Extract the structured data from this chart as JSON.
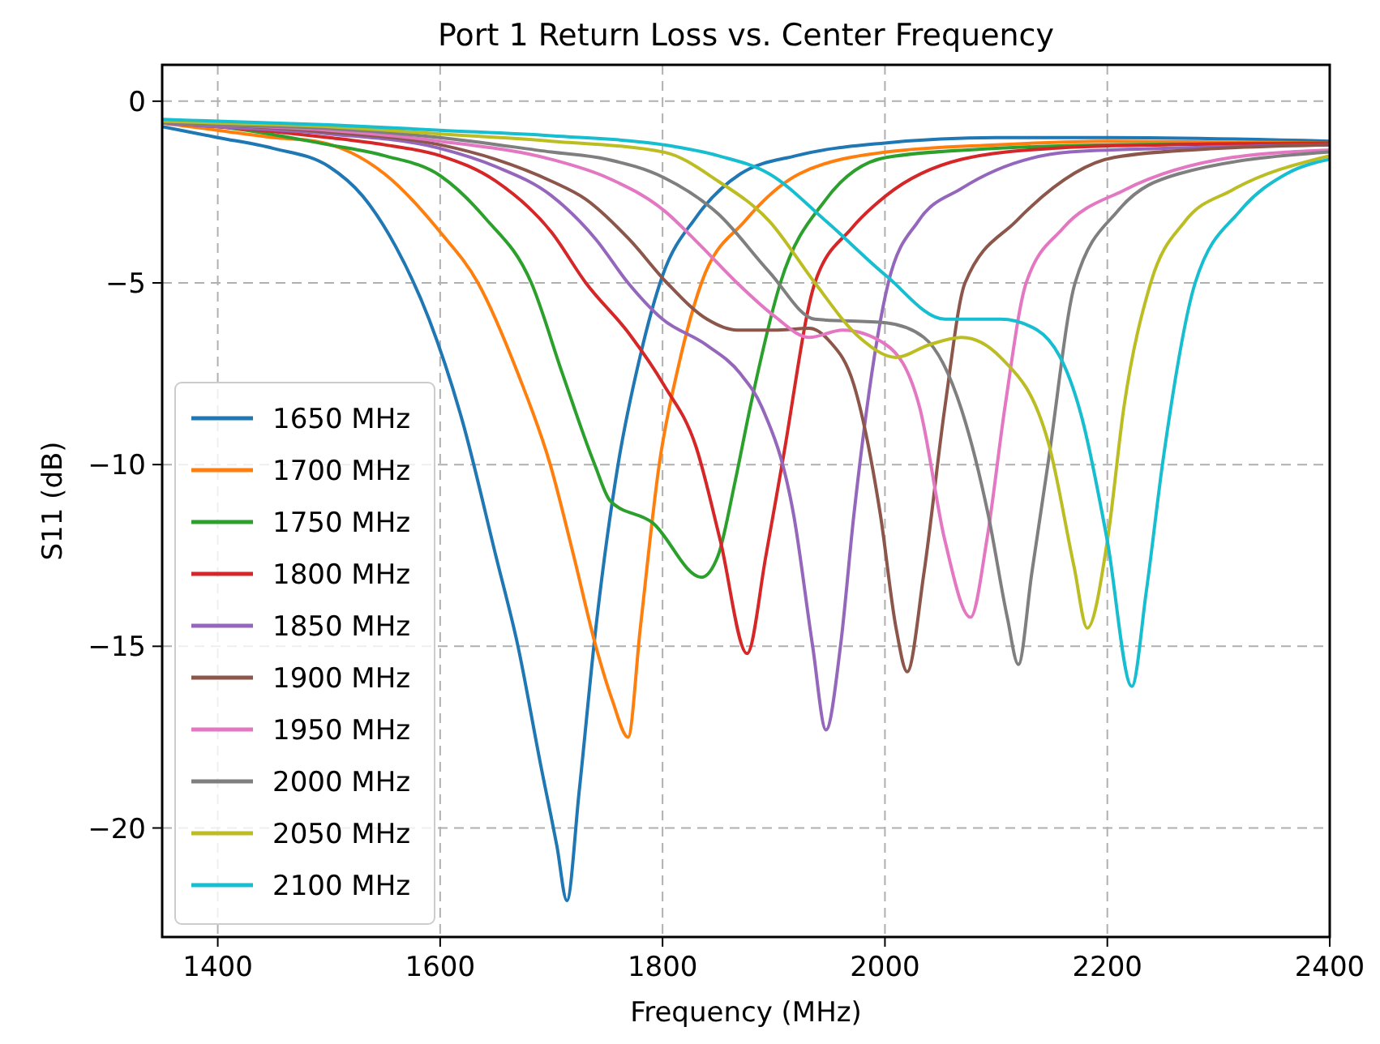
{
  "chart_data": {
    "type": "line",
    "title": "Port 1 Return Loss vs. Center Frequency",
    "xlabel": "Frequency (MHz)",
    "ylabel": "S11 (dB)",
    "xlim": [
      1350,
      2400
    ],
    "ylim": [
      -23,
      1
    ],
    "xticks": [
      1400,
      1600,
      1800,
      2000,
      2200,
      2400
    ],
    "yticks": [
      {
        "value": 0,
        "label": "0"
      },
      {
        "value": -5,
        "label": "−5"
      },
      {
        "value": -10,
        "label": "−10"
      },
      {
        "value": -15,
        "label": "−15"
      },
      {
        "value": -20,
        "label": "−20"
      }
    ],
    "grid": true,
    "legend": "bottom left",
    "line_style": "solid",
    "marker": "none",
    "series": [
      {
        "name": "1650 MHz",
        "color": "#1f77b4",
        "x": [
          1350,
          1400,
          1450,
          1500,
          1530,
          1560,
          1590,
          1620,
          1650,
          1670,
          1690,
          1705,
          1714,
          1725,
          1740,
          1760,
          1780,
          1800,
          1830,
          1870,
          1920,
          2000,
          2100,
          2200,
          2400
        ],
        "values": [
          -0.7,
          -1.0,
          -1.3,
          -1.8,
          -2.6,
          -4.0,
          -6.0,
          -8.8,
          -12.5,
          -15,
          -18.2,
          -20.5,
          -22,
          -19,
          -14.5,
          -10,
          -7,
          -4.8,
          -3.2,
          -2.0,
          -1.5,
          -1.15,
          -1.0,
          -1.0,
          -1.1
        ]
      },
      {
        "name": "1700 MHz",
        "color": "#ff7f0e",
        "x": [
          1350,
          1400,
          1450,
          1488,
          1550,
          1600,
          1634,
          1670,
          1699,
          1720,
          1740,
          1755,
          1769,
          1780,
          1797,
          1815,
          1835,
          1874,
          1923,
          2001,
          2100,
          2200,
          2400
        ],
        "values": [
          -0.6,
          -0.8,
          -1.0,
          -1.1,
          -2.0,
          -3.6,
          -5.0,
          -7.5,
          -10,
          -12.5,
          -15,
          -16.5,
          -17.5,
          -14.5,
          -10,
          -7.2,
          -5.0,
          -3.3,
          -2.0,
          -1.4,
          -1.2,
          -1.1,
          -1.15
        ]
      },
      {
        "name": "1750 MHz",
        "color": "#2ca02c",
        "x": [
          1350,
          1400,
          1500,
          1550,
          1600,
          1640,
          1682,
          1710,
          1739,
          1753,
          1791,
          1835,
          1850,
          1865,
          1879,
          1906,
          1947,
          2001,
          2100,
          2200,
          2400
        ],
        "values": [
          -0.6,
          -0.7,
          -1.2,
          -1.5,
          -2.05,
          -3.2,
          -5.0,
          -7.5,
          -10,
          -11,
          -11.6,
          -13.1,
          -12.5,
          -10.5,
          -8.4,
          -5.0,
          -2.7,
          -1.55,
          -1.3,
          -1.2,
          -1.15
        ]
      },
      {
        "name": "1800 MHz",
        "color": "#d62728",
        "x": [
          1350,
          1400,
          1500,
          1550,
          1600,
          1650,
          1700,
          1731,
          1770,
          1801,
          1830,
          1852,
          1876,
          1893,
          1908,
          1937,
          1970,
          2001,
          2069,
          2150,
          2250,
          2400
        ],
        "values": [
          -0.6,
          -0.7,
          -1.0,
          -1.2,
          -1.5,
          -2.2,
          -3.6,
          -5.0,
          -6.4,
          -7.8,
          -9.5,
          -12.1,
          -15.2,
          -12.5,
          -9.9,
          -5.0,
          -3.5,
          -2.6,
          -1.6,
          -1.3,
          -1.2,
          -1.15
        ]
      },
      {
        "name": "1850 MHz",
        "color": "#9467bd",
        "x": [
          1350,
          1400,
          1500,
          1600,
          1650,
          1700,
          1740,
          1769,
          1800,
          1839,
          1870,
          1889,
          1918,
          1935,
          1947,
          1960,
          1972,
          2003,
          2030,
          2069,
          2166,
          2250,
          2400
        ],
        "values": [
          -0.6,
          -0.7,
          -0.9,
          -1.3,
          -1.8,
          -2.6,
          -3.8,
          -5.0,
          -6.0,
          -6.7,
          -7.5,
          -8.4,
          -11.4,
          -15,
          -17.3,
          -15,
          -11.4,
          -5.0,
          -3.3,
          -2.4,
          -1.4,
          -1.3,
          -1.2
        ]
      },
      {
        "name": "1900 MHz",
        "color": "#8c564b",
        "x": [
          1350,
          1400,
          1500,
          1600,
          1650,
          1700,
          1731,
          1770,
          1804,
          1840,
          1867,
          1900,
          1932,
          1950,
          1972,
          1996,
          2010,
          2020,
          2035,
          2054,
          2072,
          2118,
          2206,
          2300,
          2400
        ],
        "values": [
          -0.6,
          -0.65,
          -0.85,
          -1.2,
          -1.6,
          -2.2,
          -2.7,
          -3.8,
          -5.0,
          -6.0,
          -6.3,
          -6.3,
          -6.25,
          -6.6,
          -7.8,
          -11.4,
          -14.5,
          -15.7,
          -13,
          -8.4,
          -5.0,
          -3.3,
          -1.55,
          -1.3,
          -1.2
        ]
      },
      {
        "name": "1950 MHz",
        "color": "#e377c2",
        "x": [
          1350,
          1400,
          1500,
          1600,
          1700,
          1750,
          1801,
          1835,
          1867,
          1900,
          1932,
          1962,
          2001,
          2031,
          2054,
          2077,
          2092,
          2108,
          2127,
          2160,
          2215,
          2312,
          2400
        ],
        "values": [
          -0.6,
          -0.65,
          -0.8,
          -1.1,
          -1.6,
          -2.1,
          -3.0,
          -4.0,
          -5.0,
          -5.9,
          -6.5,
          -6.3,
          -6.7,
          -8.4,
          -12.1,
          -14.2,
          -12,
          -8.4,
          -5.0,
          -3.5,
          -2.45,
          -1.55,
          -1.35
        ]
      },
      {
        "name": "2000 MHz",
        "color": "#7f7f7f",
        "x": [
          1350,
          1400,
          1500,
          1600,
          1700,
          1750,
          1801,
          1850,
          1896,
          1937,
          2001,
          2035,
          2069,
          2093,
          2110,
          2120,
          2132,
          2147,
          2171,
          2210,
          2264,
          2400
        ],
        "values": [
          -0.6,
          -0.65,
          -0.75,
          -1.0,
          -1.4,
          -1.6,
          -2.1,
          -3.1,
          -4.7,
          -6.0,
          -6.1,
          -6.5,
          -8.5,
          -11.4,
          -14.2,
          -15.5,
          -13,
          -9.9,
          -5.0,
          -3.0,
          -2.0,
          -1.4
        ]
      },
      {
        "name": "2050 MHz",
        "color": "#bcbd22",
        "x": [
          1350,
          1400,
          1500,
          1600,
          1700,
          1801,
          1850,
          1896,
          1937,
          1977,
          2010,
          2040,
          2069,
          2104,
          2147,
          2170,
          2182,
          2200,
          2215,
          2239,
          2270,
          2312,
          2400
        ],
        "values": [
          -0.55,
          -0.6,
          -0.7,
          -0.9,
          -1.1,
          -1.4,
          -2.2,
          -3.3,
          -5.0,
          -6.5,
          -7.05,
          -6.7,
          -6.5,
          -7.05,
          -9.4,
          -12.8,
          -14.5,
          -12.1,
          -8.4,
          -5.0,
          -3.3,
          -2.45,
          -1.5
        ]
      },
      {
        "name": "2100 MHz",
        "color": "#17becf",
        "x": [
          1350,
          1400,
          1500,
          1600,
          1700,
          1801,
          1850,
          1896,
          1947,
          2001,
          2054,
          2104,
          2137,
          2177,
          2200,
          2222,
          2235,
          2250,
          2279,
          2320,
          2361,
          2400
        ],
        "values": [
          -0.5,
          -0.55,
          -0.65,
          -0.8,
          -0.95,
          -1.2,
          -1.5,
          -2.0,
          -3.3,
          -4.8,
          -6.0,
          -6.0,
          -6.3,
          -8.7,
          -12.1,
          -16.1,
          -13.5,
          -9.9,
          -5.0,
          -3.0,
          -2.0,
          -1.6
        ]
      }
    ]
  }
}
